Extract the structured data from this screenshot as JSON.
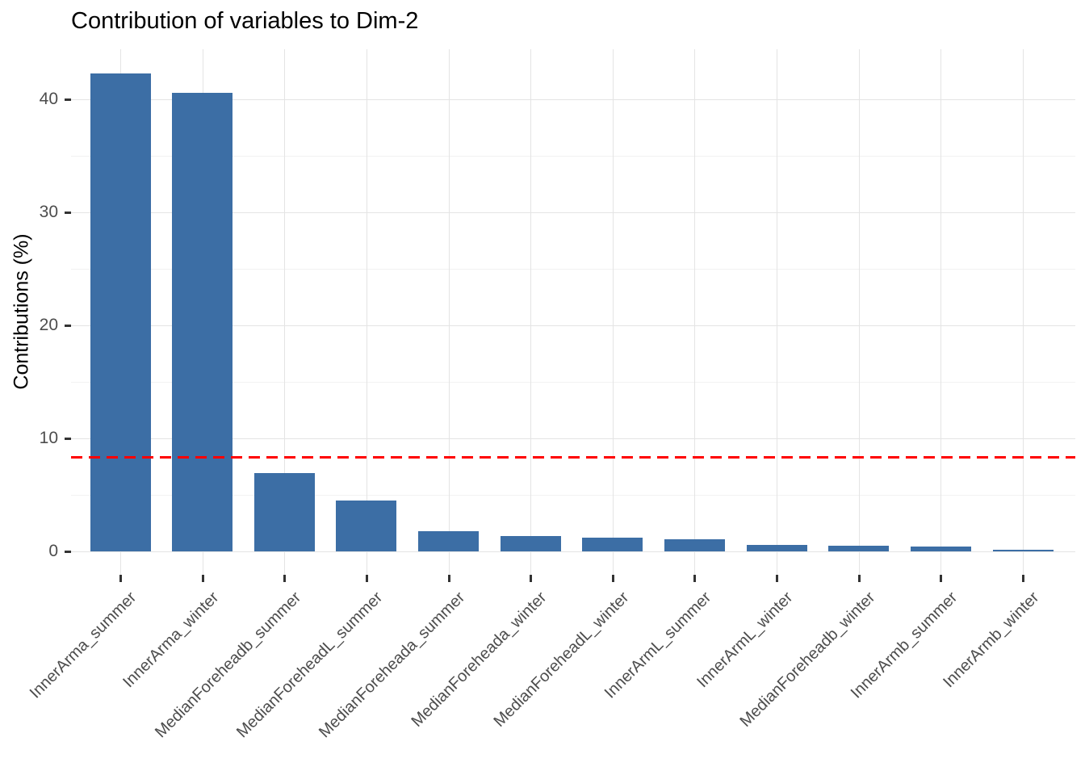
{
  "title": "Contribution of variables to Dim-2",
  "ylabel": "Contributions (%)",
  "chart_data": {
    "type": "bar",
    "title": "Contribution of variables to Dim-2",
    "xlabel": "",
    "ylabel": "Contributions (%)",
    "categories": [
      "InnerArma_summer",
      "InnerArma_winter",
      "MedianForeheadb_summer",
      "MedianForeheadL_summer",
      "MedianForeheada_summer",
      "MedianForeheada_winter",
      "MedianForeheadL_winter",
      "InnerArmL_summer",
      "InnerArmL_winter",
      "MedianForeheadb_winter",
      "InnerArmb_summer",
      "InnerArmb_winter"
    ],
    "values": [
      42.3,
      40.6,
      6.9,
      4.5,
      1.8,
      1.35,
      1.2,
      1.05,
      0.6,
      0.5,
      0.4,
      0.15
    ],
    "yticks": [
      0,
      10,
      20,
      30,
      40
    ],
    "yticks_minor": [
      5,
      15,
      25,
      35
    ],
    "ylim": [
      -2.1,
      44.4
    ],
    "grid": true,
    "legend": "none",
    "reference_line": {
      "value": 8.33,
      "style": "dashed",
      "color": "#ff0000"
    }
  },
  "colors": {
    "bar_fill": "#3c6ea5",
    "reference_line": "#ff0000",
    "grid_major": "#e4e4e4",
    "grid_minor": "#f2f2f2",
    "tick_mark": "#333333",
    "axis_text": "#4d4d4d",
    "title_text": "#000000"
  }
}
